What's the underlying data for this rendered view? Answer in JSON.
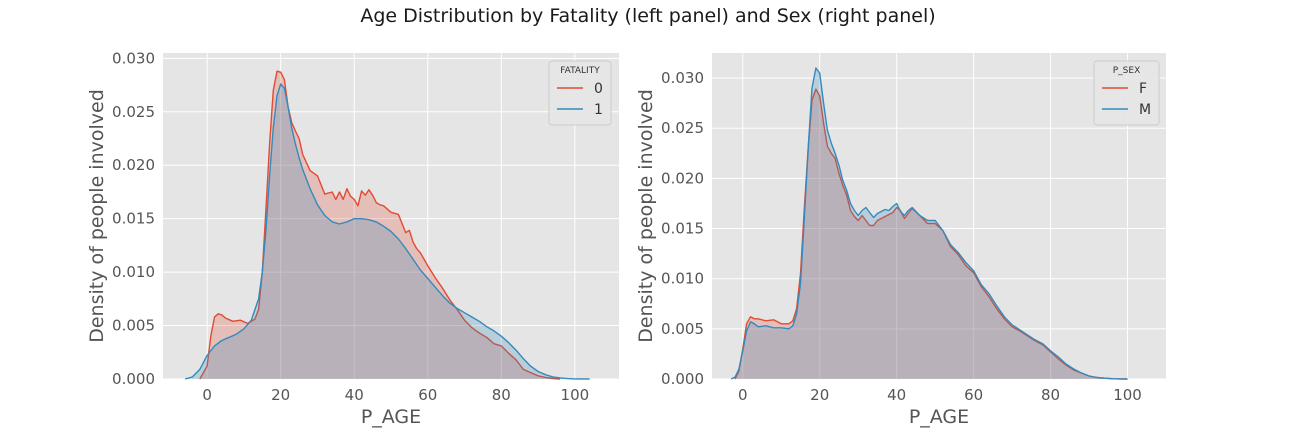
{
  "figure": {
    "title": "Age Distribution by Fatality (left panel)  and Sex (right panel)"
  },
  "colors": {
    "background": "#e5e5e5",
    "grid": "#ffffff",
    "series_red": "#e24a33",
    "series_blue": "#348abd",
    "fill_red": "#e24a33",
    "fill_blue": "#348abd",
    "tick_text": "#555555"
  },
  "chart_data": [
    {
      "type": "area",
      "subtype": "kde",
      "title": "",
      "xlabel": "P_AGE",
      "ylabel": "Density of people involved",
      "xlim": [
        -12,
        112
      ],
      "ylim": [
        0,
        0.0305
      ],
      "xticks": [
        0,
        20,
        40,
        60,
        80,
        100
      ],
      "xtick_labels": [
        "0",
        "20",
        "40",
        "60",
        "80",
        "100"
      ],
      "yticks": [
        0,
        0.005,
        0.01,
        0.015,
        0.02,
        0.025,
        0.03
      ],
      "ytick_labels": [
        "0.000",
        "0.005",
        "0.010",
        "0.015",
        "0.020",
        "0.025",
        "0.030"
      ],
      "grid": true,
      "legend": {
        "title": "FATALITY",
        "position": "top-right"
      },
      "series": [
        {
          "name": "0",
          "color": "red",
          "x": [
            -2,
            0,
            1,
            2,
            3,
            4,
            5,
            7,
            9,
            11,
            13,
            14,
            15,
            16,
            17,
            18,
            19,
            20,
            21,
            22,
            23,
            24,
            25,
            26,
            28,
            30,
            32,
            34,
            35,
            36,
            37,
            38,
            39,
            40,
            41,
            42,
            43,
            44,
            45,
            46,
            47,
            48,
            50,
            52,
            54,
            55,
            56,
            57,
            58,
            60,
            62,
            64,
            66,
            68,
            70,
            72,
            74,
            76,
            78,
            80,
            82,
            84,
            86,
            88,
            90,
            92,
            94,
            96
          ],
          "y": [
            0.0,
            0.0012,
            0.004,
            0.0058,
            0.0061,
            0.006,
            0.0057,
            0.0054,
            0.0055,
            0.0052,
            0.0056,
            0.0065,
            0.01,
            0.016,
            0.022,
            0.027,
            0.0288,
            0.0287,
            0.028,
            0.0255,
            0.024,
            0.0232,
            0.0225,
            0.021,
            0.0195,
            0.019,
            0.0173,
            0.0175,
            0.0168,
            0.0175,
            0.0168,
            0.0178,
            0.0171,
            0.0168,
            0.0162,
            0.0176,
            0.0172,
            0.0177,
            0.0172,
            0.0165,
            0.0163,
            0.0162,
            0.0156,
            0.0154,
            0.0137,
            0.0139,
            0.0128,
            0.0122,
            0.0118,
            0.0106,
            0.0095,
            0.0085,
            0.0074,
            0.0065,
            0.0055,
            0.0048,
            0.0043,
            0.0039,
            0.0033,
            0.0031,
            0.0024,
            0.0018,
            0.0009,
            0.0006,
            0.0003,
            0.00015,
            5e-05,
            0.0
          ]
        },
        {
          "name": "1",
          "color": "blue",
          "x": [
            -6,
            -4,
            -2,
            0,
            2,
            4,
            6,
            8,
            10,
            12,
            14,
            15,
            16,
            17,
            18,
            19,
            20,
            21,
            22,
            23,
            24,
            25,
            26,
            28,
            30,
            32,
            34,
            36,
            38,
            40,
            42,
            44,
            46,
            48,
            50,
            52,
            54,
            56,
            58,
            60,
            62,
            64,
            66,
            68,
            70,
            72,
            74,
            76,
            78,
            80,
            82,
            84,
            86,
            88,
            90,
            92,
            94,
            96,
            98,
            100,
            104
          ],
          "y": [
            0.0,
            0.0002,
            0.0009,
            0.0022,
            0.0031,
            0.0036,
            0.0039,
            0.0042,
            0.0047,
            0.0055,
            0.0075,
            0.01,
            0.014,
            0.019,
            0.0235,
            0.0265,
            0.0276,
            0.0272,
            0.0255,
            0.0235,
            0.022,
            0.0207,
            0.0196,
            0.0178,
            0.0163,
            0.0153,
            0.0147,
            0.0145,
            0.0147,
            0.015,
            0.015,
            0.0149,
            0.0147,
            0.0143,
            0.0138,
            0.0131,
            0.0122,
            0.0112,
            0.0102,
            0.0094,
            0.0086,
            0.0078,
            0.0071,
            0.0066,
            0.0062,
            0.0058,
            0.0054,
            0.0049,
            0.0045,
            0.004,
            0.0034,
            0.0027,
            0.0019,
            0.0012,
            0.0007,
            0.0004,
            0.0002,
            0.0001,
            4e-05,
            1e-05,
            0.0
          ]
        }
      ]
    },
    {
      "type": "area",
      "subtype": "kde",
      "title": "",
      "xlabel": "P_AGE",
      "ylabel": "Density of people involved",
      "xlim": [
        -8,
        110
      ],
      "ylim": [
        0,
        0.0325
      ],
      "xticks": [
        0,
        20,
        40,
        60,
        80,
        100
      ],
      "xtick_labels": [
        "0",
        "20",
        "40",
        "60",
        "80",
        "100"
      ],
      "yticks": [
        0,
        0.005,
        0.01,
        0.015,
        0.02,
        0.025,
        0.03
      ],
      "ytick_labels": [
        "0.000",
        "0.005",
        "0.010",
        "0.015",
        "0.020",
        "0.025",
        "0.030"
      ],
      "grid": true,
      "legend": {
        "title": "P_SEX",
        "position": "top-right"
      },
      "series": [
        {
          "name": "F",
          "color": "red",
          "x": [
            -2,
            -1,
            0,
            1,
            2,
            3,
            4,
            6,
            8,
            10,
            12,
            13,
            14,
            15,
            16,
            17,
            18,
            19,
            20,
            21,
            22,
            23,
            24,
            25,
            26,
            27,
            28,
            29,
            30,
            31,
            32,
            33,
            34,
            35,
            36,
            37,
            38,
            39,
            40,
            41,
            42,
            43,
            44,
            46,
            48,
            50,
            52,
            54,
            56,
            58,
            60,
            62,
            64,
            66,
            68,
            70,
            72,
            74,
            76,
            78,
            80,
            82,
            84,
            86,
            88,
            90,
            92,
            94,
            96,
            98,
            100
          ],
          "y": [
            0.0,
            0.0008,
            0.003,
            0.0055,
            0.0062,
            0.006,
            0.006,
            0.0058,
            0.0059,
            0.0055,
            0.0055,
            0.0058,
            0.007,
            0.0105,
            0.017,
            0.023,
            0.0278,
            0.0289,
            0.0282,
            0.0255,
            0.0232,
            0.0225,
            0.022,
            0.0205,
            0.0193,
            0.0183,
            0.0168,
            0.0162,
            0.0158,
            0.0163,
            0.0158,
            0.0153,
            0.0153,
            0.0158,
            0.016,
            0.0162,
            0.0164,
            0.0166,
            0.0171,
            0.0168,
            0.016,
            0.0165,
            0.017,
            0.0163,
            0.0155,
            0.0155,
            0.0148,
            0.0132,
            0.0124,
            0.0113,
            0.0106,
            0.0092,
            0.0082,
            0.007,
            0.006,
            0.0052,
            0.0048,
            0.0043,
            0.0038,
            0.0034,
            0.0027,
            0.002,
            0.0014,
            0.0009,
            0.0006,
            0.0003,
            0.00015,
            8e-05,
            3e-05,
            1e-05,
            0.0
          ]
        },
        {
          "name": "M",
          "color": "blue",
          "x": [
            -3,
            -2,
            -1,
            0,
            1,
            2,
            3,
            4,
            6,
            8,
            10,
            12,
            13,
            14,
            15,
            16,
            17,
            18,
            19,
            20,
            21,
            22,
            23,
            24,
            25,
            26,
            27,
            28,
            29,
            30,
            31,
            32,
            33,
            34,
            35,
            36,
            37,
            38,
            39,
            40,
            41,
            42,
            43,
            44,
            46,
            48,
            50,
            52,
            54,
            56,
            58,
            60,
            62,
            64,
            66,
            68,
            70,
            72,
            74,
            76,
            78,
            80,
            82,
            84,
            86,
            88,
            90,
            92,
            94,
            96,
            98,
            100
          ],
          "y": [
            0.0,
            0.0002,
            0.001,
            0.0028,
            0.0048,
            0.0057,
            0.0055,
            0.0052,
            0.0053,
            0.0051,
            0.0051,
            0.005,
            0.0053,
            0.0065,
            0.0095,
            0.016,
            0.023,
            0.029,
            0.031,
            0.0305,
            0.0275,
            0.0248,
            0.0235,
            0.0225,
            0.0213,
            0.0198,
            0.0188,
            0.0175,
            0.0168,
            0.0163,
            0.0168,
            0.0171,
            0.0166,
            0.0161,
            0.0165,
            0.0167,
            0.0169,
            0.0168,
            0.0172,
            0.0175,
            0.0167,
            0.0163,
            0.0168,
            0.0171,
            0.0163,
            0.0158,
            0.0158,
            0.0148,
            0.0134,
            0.0126,
            0.0116,
            0.0108,
            0.0094,
            0.0085,
            0.0073,
            0.0062,
            0.0054,
            0.0049,
            0.0044,
            0.0039,
            0.0035,
            0.0028,
            0.0022,
            0.0015,
            0.001,
            0.0006,
            0.0003,
            0.00015,
            8e-05,
            3e-05,
            1e-05,
            0.0
          ]
        }
      ]
    }
  ]
}
